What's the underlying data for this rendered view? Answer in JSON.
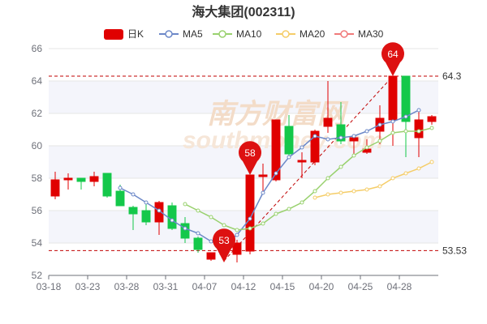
{
  "title": "海大集团(002311)",
  "watermark": {
    "cn": "南方财富网",
    "en": "southmoney.com"
  },
  "legend": [
    {
      "label": "日K",
      "color": "#e00000",
      "kind": "candle"
    },
    {
      "label": "MA5",
      "color": "#6c88c8",
      "kind": "line"
    },
    {
      "label": "MA10",
      "color": "#99d16e",
      "kind": "line"
    },
    {
      "label": "MA20",
      "color": "#f5cd68",
      "kind": "line"
    },
    {
      "label": "MA30",
      "color": "#f07a7a",
      "kind": "line"
    }
  ],
  "colors": {
    "up": "#e00000",
    "down": "#14c84a",
    "grid": "#e6e6e6",
    "ref": "#c00000",
    "axis": "#6e7079",
    "band": "#f4f5fb"
  },
  "chart_data": {
    "type": "candlestick",
    "ylim": [
      52,
      66
    ],
    "yticks": [
      52,
      54,
      56,
      58,
      60,
      62,
      64,
      66
    ],
    "xticks": [
      {
        "label": "03-18",
        "index": 0
      },
      {
        "label": "03-23",
        "index": 3
      },
      {
        "label": "03-28",
        "index": 6
      },
      {
        "label": "03-31",
        "index": 9
      },
      {
        "label": "04-07",
        "index": 12
      },
      {
        "label": "04-12",
        "index": 15
      },
      {
        "label": "04-15",
        "index": 18
      },
      {
        "label": "04-20",
        "index": 21
      },
      {
        "label": "04-25",
        "index": 24
      },
      {
        "label": "04-28",
        "index": 27
      }
    ],
    "candles": [
      {
        "o": 56.9,
        "h": 58.4,
        "l": 56.7,
        "c": 57.9
      },
      {
        "o": 57.9,
        "h": 58.3,
        "l": 57.3,
        "c": 58.0
      },
      {
        "o": 58.0,
        "h": 58.0,
        "l": 57.3,
        "c": 57.8
      },
      {
        "o": 57.8,
        "h": 58.4,
        "l": 57.5,
        "c": 58.1
      },
      {
        "o": 58.3,
        "h": 58.3,
        "l": 56.8,
        "c": 56.9
      },
      {
        "o": 57.2,
        "h": 57.6,
        "l": 56.3,
        "c": 56.3
      },
      {
        "o": 56.2,
        "h": 56.3,
        "l": 54.8,
        "c": 55.8
      },
      {
        "o": 56.0,
        "h": 56.4,
        "l": 55.1,
        "c": 55.3
      },
      {
        "o": 55.3,
        "h": 56.6,
        "l": 54.5,
        "c": 56.5
      },
      {
        "o": 56.3,
        "h": 56.5,
        "l": 54.8,
        "c": 54.9
      },
      {
        "o": 55.2,
        "h": 55.6,
        "l": 54.0,
        "c": 54.3
      },
      {
        "o": 54.3,
        "h": 54.4,
        "l": 53.4,
        "c": 53.6
      },
      {
        "o": 53.0,
        "h": 53.4,
        "l": 52.9,
        "c": 53.4
      },
      {
        "o": 53.9,
        "h": 54.2,
        "l": 53.0,
        "c": 53.3
      },
      {
        "o": 53.3,
        "h": 54.2,
        "l": 52.8,
        "c": 54.0
      },
      {
        "o": 53.5,
        "h": 58.2,
        "l": 53.3,
        "c": 58.2
      },
      {
        "o": 58.1,
        "h": 58.9,
        "l": 57.2,
        "c": 58.2
      },
      {
        "o": 57.9,
        "h": 61.6,
        "l": 57.8,
        "c": 61.6
      },
      {
        "o": 61.2,
        "h": 61.9,
        "l": 59.2,
        "c": 59.5
      },
      {
        "o": 59.0,
        "h": 59.6,
        "l": 58.0,
        "c": 59.1
      },
      {
        "o": 59.0,
        "h": 61.0,
        "l": 58.8,
        "c": 60.9
      },
      {
        "o": 61.2,
        "h": 64.0,
        "l": 60.8,
        "c": 61.7
      },
      {
        "o": 61.3,
        "h": 62.7,
        "l": 60.1,
        "c": 60.3
      },
      {
        "o": 60.3,
        "h": 60.7,
        "l": 59.3,
        "c": 60.5
      },
      {
        "o": 59.6,
        "h": 60.4,
        "l": 59.5,
        "c": 59.8
      },
      {
        "o": 60.9,
        "h": 62.5,
        "l": 60.1,
        "c": 61.7
      },
      {
        "o": 61.6,
        "h": 64.3,
        "l": 60.0,
        "c": 64.3
      },
      {
        "o": 64.3,
        "h": 64.3,
        "l": 59.3,
        "c": 61.5
      },
      {
        "o": 60.5,
        "h": 62.2,
        "l": 59.3,
        "c": 61.6
      },
      {
        "o": 61.5,
        "h": 61.9,
        "l": 61.3,
        "c": 61.8
      }
    ],
    "ma": [
      {
        "name": "MA5",
        "start": 5,
        "values": [
          57.4,
          57.0,
          56.5,
          56.0,
          55.4,
          54.9,
          54.6,
          54.1,
          53.8,
          54.5,
          55.5,
          57.1,
          58.3,
          59.3,
          59.9,
          60.6,
          60.4,
          60.5,
          60.6,
          60.9,
          61.3,
          61.5,
          61.8,
          62.2
        ]
      },
      {
        "name": "MA10",
        "start": 10,
        "values": [
          56.4,
          56.0,
          55.6,
          55.1,
          54.8,
          54.9,
          55.2,
          55.8,
          56.1,
          56.5,
          57.2,
          58.0,
          58.7,
          59.4,
          59.9,
          60.3,
          60.8,
          60.9,
          60.9,
          61.1
        ]
      },
      {
        "name": "MA20",
        "start": 20,
        "values": [
          56.8,
          57.0,
          57.1,
          57.2,
          57.3,
          57.5,
          58.0,
          58.3,
          58.6,
          59.0
        ]
      }
    ],
    "markers": [
      {
        "label": "64",
        "index": 26,
        "value": 64.3
      },
      {
        "label": "58",
        "index": 15,
        "value": 58.2
      },
      {
        "label": "53",
        "index": 13,
        "value": 52.8
      }
    ],
    "reference_lines": [
      {
        "label": "64.3",
        "value": 64.3
      },
      {
        "label": "53.53",
        "value": 53.53
      }
    ],
    "trend_line": {
      "from": {
        "index": 13,
        "value": 52.9
      },
      "to": {
        "index": 26,
        "value": 64.3
      }
    }
  }
}
